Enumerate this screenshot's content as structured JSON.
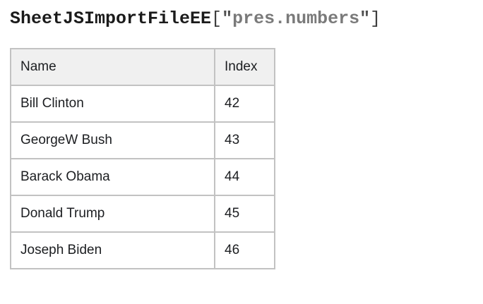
{
  "title": {
    "identifier": "SheetJSImportFileEE",
    "bracket_open": "[",
    "quote_open": "\"",
    "string": "pres.numbers",
    "quote_close": "\"",
    "bracket_close": "]",
    "colors": {
      "identifier": "#1b1b1b",
      "bracket": "#3d3d3d",
      "quote": "#4f4f4f",
      "string": "#7a7a7a"
    }
  },
  "table": {
    "headers": [
      "Name",
      "Index"
    ],
    "rows": [
      {
        "name": "Bill Clinton",
        "index": "42"
      },
      {
        "name": "GeorgeW Bush",
        "index": "43"
      },
      {
        "name": "Barack Obama",
        "index": "44"
      },
      {
        "name": "Donald Trump",
        "index": "45"
      },
      {
        "name": "Joseph Biden",
        "index": "46"
      }
    ],
    "colors": {
      "header_background": "#f0f0f0",
      "border": "#c2c2c2",
      "text": "#1c1e21"
    }
  }
}
